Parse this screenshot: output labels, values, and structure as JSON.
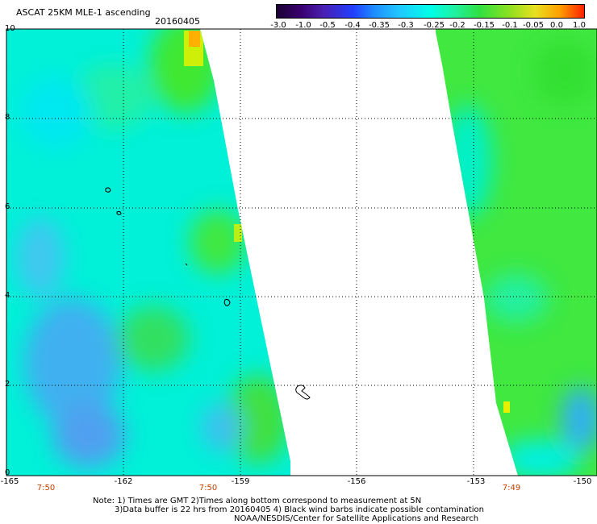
{
  "header": {
    "title": "ASCAT 25KM MLE-1 ascending",
    "date": "20160405"
  },
  "colorbar": {
    "labels": [
      "-3.0",
      "-1.0",
      "-0.5",
      "-0.4",
      "-0.35",
      "-0.3",
      "-0.25",
      "-0.2",
      "-0.15",
      "-0.1",
      "-0.05",
      "0.0",
      "1.0"
    ],
    "colors": [
      "#1a0033",
      "#3a0070",
      "#4a1fb0",
      "#2040ff",
      "#1e90ff",
      "#20c8ff",
      "#00ffe8",
      "#20f0a0",
      "#30e040",
      "#90e020",
      "#e8e020",
      "#ffa000",
      "#ff2000"
    ]
  },
  "axes": {
    "y_ticks": [
      "10",
      "8",
      "6",
      "4",
      "2",
      "0"
    ],
    "x_ticks": [
      "-165",
      "-162",
      "-159",
      "-156",
      "-153",
      "-150"
    ],
    "time_labels": [
      "7:50",
      "7:50",
      "7:49"
    ]
  },
  "colors": {
    "cyan": "#00f0e0",
    "green": "#40e840",
    "blue": "#40a8f0",
    "yellow": "#e8f000",
    "orange": "#ffb000"
  },
  "notes": {
    "line1": "Note: 1) Times are GMT 2)Times along bottom correspond to measurement at 5N",
    "line2": "3)Data buffer is 22 hrs from 20160405 4) Black wind barbs indicate possible contamination",
    "line3": "NOAA/NESDIS/Center for Satellite Applications and Research"
  }
}
